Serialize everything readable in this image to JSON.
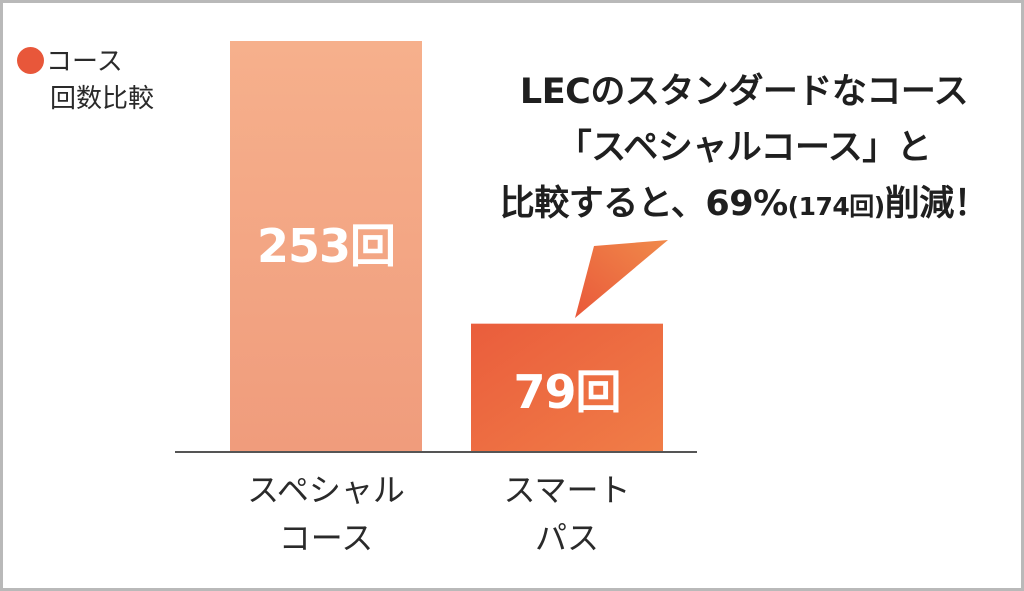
{
  "chart_data": {
    "type": "bar",
    "categories": [
      "スペシャル\nコース",
      "スマート\nパス"
    ],
    "category_lines": [
      [
        "スペシャル",
        "コース"
      ],
      [
        "スマート",
        "パス"
      ]
    ],
    "values": [
      253,
      79
    ],
    "data_labels": [
      "253回",
      "79回"
    ],
    "bar_colors": [
      "#f1a17d",
      "#e9583a"
    ],
    "legend": {
      "line1": "コース",
      "line2": "回数比較",
      "marker_color": "#e8573a"
    },
    "ylim": [
      0,
      253
    ],
    "grid": false,
    "annotation": {
      "line1": "LECのスタンダードなコース",
      "line2": "「スペシャルコース」と",
      "line3_main": "比較すると、69%",
      "line3_small": "(174回)",
      "line3_end": "削減！",
      "points_to": "スマート\nパス"
    }
  },
  "colors": {
    "axis": "#555555",
    "callout": "#e9583a"
  }
}
